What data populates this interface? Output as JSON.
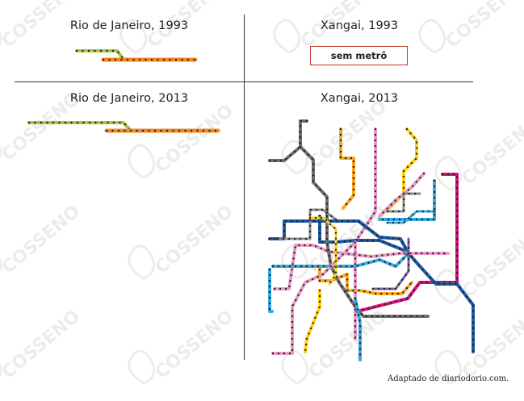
{
  "panels": {
    "rio_1993": {
      "title": "Rio de Janeiro, 1993"
    },
    "xangai_1993": {
      "title": "Xangai, 1993",
      "box_text": "sem metrô"
    },
    "rio_2013": {
      "title": "Rio de Janeiro, 2013"
    },
    "xangai_2013": {
      "title": "Xangai, 2013"
    }
  },
  "watermark": {
    "text": "COSSENO"
  },
  "credit": "Adaptado de diariodorio.com.",
  "colors": {
    "rio_line1": "#a5c93a",
    "rio_line2": "#f08a24",
    "border_box": "#c0392b",
    "sh_red": "#e2306c",
    "sh_green": "#8dc63f",
    "sh_yellow": "#fcd116",
    "sh_purple": "#7a5fa0",
    "sh_cyan": "#36a9e1",
    "sh_blue": "#1a5aa6",
    "sh_gray": "#8c8c8c",
    "sh_pink": "#e99ac6",
    "sh_orange": "#f7a823",
    "sh_magenta": "#d6107a",
    "sh_darkgray": "#6d6d6d"
  }
}
